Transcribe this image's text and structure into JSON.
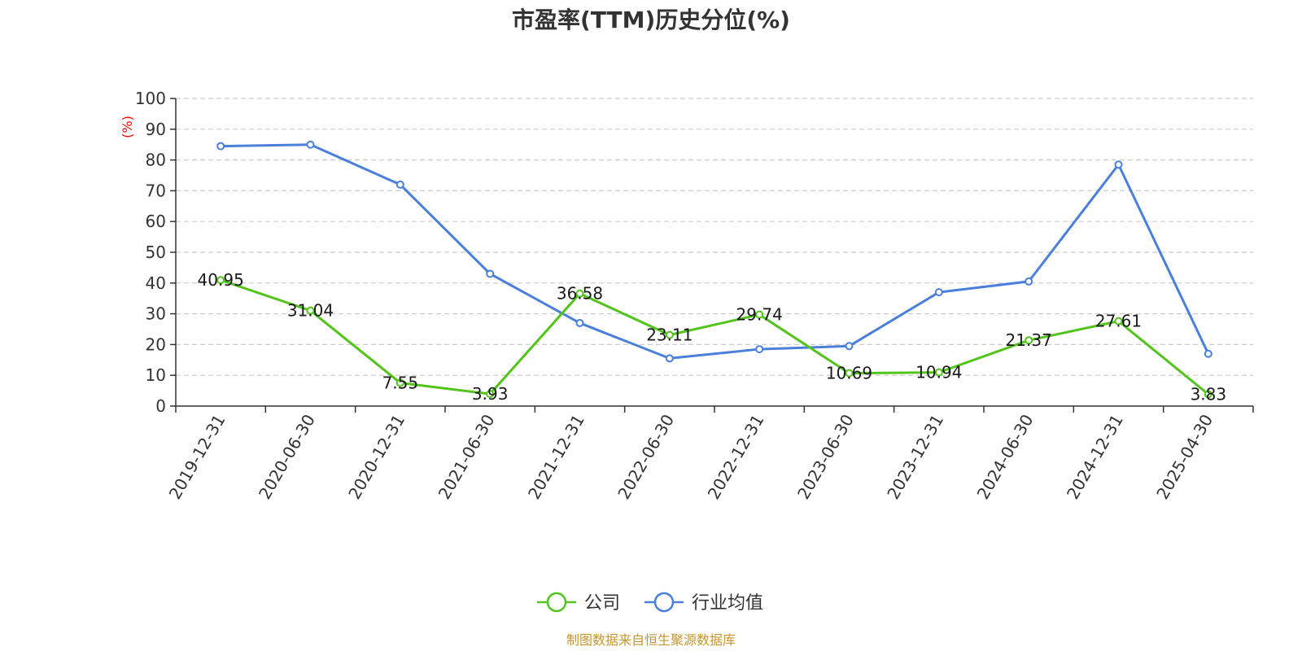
{
  "chart_data": {
    "type": "line",
    "title": "市盈率(TTM)历史分位(%)",
    "ylabel": "(%)",
    "ylim": [
      0,
      100
    ],
    "yticks": [
      0,
      10,
      20,
      30,
      40,
      50,
      60,
      70,
      80,
      90,
      100
    ],
    "grid": true,
    "legend_position": "bottom-center",
    "categories": [
      "2019-12-31",
      "2020-06-30",
      "2020-12-31",
      "2021-06-30",
      "2021-12-31",
      "2022-06-30",
      "2022-12-31",
      "2023-06-30",
      "2023-12-31",
      "2024-06-30",
      "2024-12-31",
      "2025-04-30"
    ],
    "series": [
      {
        "name": "公司",
        "color": "#52c41a",
        "values": [
          40.95,
          31.04,
          7.55,
          3.93,
          36.58,
          23.11,
          29.74,
          10.69,
          10.94,
          21.37,
          27.61,
          3.83
        ],
        "labels": [
          "40.95",
          "31.04",
          "7.55",
          "3.93",
          "36.58",
          "23.11",
          "29.74",
          "10.69",
          "10.94",
          "21.37",
          "27.61",
          "3.83"
        ],
        "show_labels": true
      },
      {
        "name": "行业均值",
        "color": "#4a7fdb",
        "values": [
          84.5,
          85,
          72,
          43,
          27,
          15.5,
          18.5,
          19.5,
          37,
          40.5,
          78.5,
          17
        ],
        "show_labels": false
      }
    ],
    "source": "制图数据来自恒生聚源数据库",
    "source_color": "#c8962e",
    "ylabel_color": "#ff0000"
  }
}
